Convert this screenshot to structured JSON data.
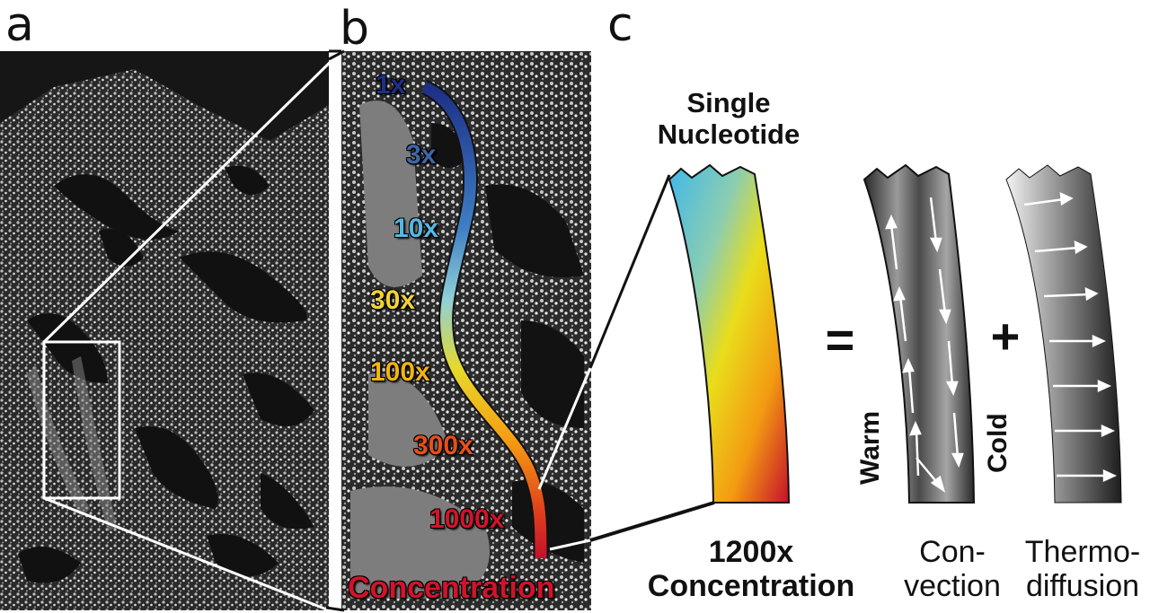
{
  "panels": {
    "a": {
      "letter": "a"
    },
    "b": {
      "letter": "b",
      "gradient_labels": [
        {
          "text": "1x",
          "color": "#1d2f86"
        },
        {
          "text": "3x",
          "color": "#3e66a8"
        },
        {
          "text": "10x",
          "color": "#55b7e0"
        },
        {
          "text": "30x",
          "color": "#f2d237"
        },
        {
          "text": "100x",
          "color": "#f2b410"
        },
        {
          "text": "300x",
          "color": "#e7501a"
        },
        {
          "text": "1000x",
          "color": "#d0142b"
        }
      ],
      "bottom_label": "Concentration",
      "bottom_label_color": "#d0142b"
    },
    "c": {
      "letter": "c",
      "top_label_line1": "Single",
      "top_label_line2": "Nucleotide",
      "bottom_label_line1": "1200x",
      "bottom_label_line2": "Concentration",
      "equals": "=",
      "plus": "+",
      "warm": "Warm",
      "cold": "Cold",
      "convection_line1": "Con-",
      "convection_line2": "vection",
      "thermo_line1": "Thermo-",
      "thermo_line2": "diffusion"
    }
  },
  "colors": {
    "gradient": [
      "#1d2f86",
      "#55b7e0",
      "#e6d92a",
      "#f59c12",
      "#d0142b"
    ]
  }
}
